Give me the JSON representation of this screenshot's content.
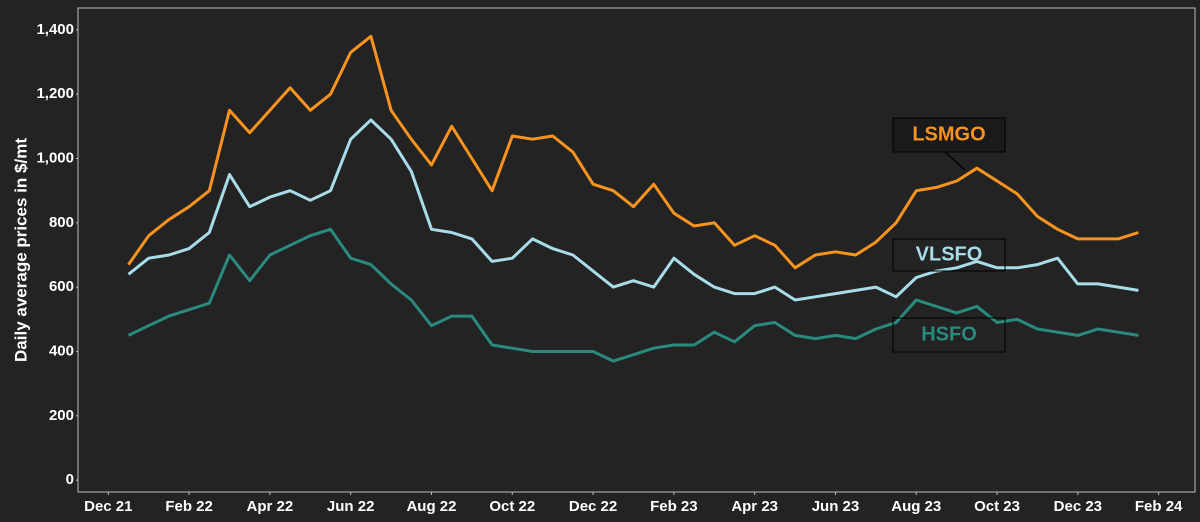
{
  "chart_data": {
    "type": "line",
    "y_label": "Daily average prices in $/mt",
    "x": [
      0.5,
      1,
      1.5,
      2,
      2.5,
      3,
      3.5,
      4,
      4.5,
      5,
      5.5,
      6,
      6.5,
      7,
      7.5,
      8,
      8.5,
      9,
      9.5,
      10,
      10.5,
      11,
      11.5,
      12,
      12.5,
      13,
      13.5,
      14,
      14.5,
      15,
      15.5,
      16,
      16.5,
      17,
      17.5,
      18,
      18.5,
      19,
      19.5,
      20,
      20.5,
      21,
      21.5,
      22,
      22.5,
      23,
      23.5,
      24,
      24.5,
      25,
      25.5
    ],
    "xlim": [
      -0.75,
      26.9
    ],
    "xticks": [
      {
        "value": 0,
        "label": "Dec 21"
      },
      {
        "value": 2,
        "label": "Feb 22"
      },
      {
        "value": 4,
        "label": "Apr 22"
      },
      {
        "value": 6,
        "label": "Jun 22"
      },
      {
        "value": 8,
        "label": "Aug 22"
      },
      {
        "value": 10,
        "label": "Oct 22"
      },
      {
        "value": 12,
        "label": "Dec 22"
      },
      {
        "value": 14,
        "label": "Feb 23"
      },
      {
        "value": 16,
        "label": "Apr 23"
      },
      {
        "value": 18,
        "label": "Jun 23"
      },
      {
        "value": 20,
        "label": "Aug 23"
      },
      {
        "value": 22,
        "label": "Oct 23"
      },
      {
        "value": 24,
        "label": "Dec 23"
      },
      {
        "value": 26,
        "label": "Feb 24"
      }
    ],
    "ylim": [
      -37,
      1468
    ],
    "yticks": [
      0,
      200,
      400,
      600,
      800,
      {
        "value": 1000,
        "label": "1,000"
      },
      {
        "value": 1200,
        "label": "1,200"
      },
      {
        "value": 1400,
        "label": "1,400"
      }
    ],
    "series": [
      {
        "name": "LSMGO",
        "color": "#f7931e",
        "values": [
          670,
          760,
          810,
          850,
          900,
          1150,
          1080,
          1150,
          1220,
          1150,
          1200,
          1330,
          1380,
          1150,
          1060,
          980,
          1100,
          1000,
          900,
          1070,
          1060,
          1070,
          1020,
          920,
          900,
          850,
          920,
          830,
          790,
          800,
          730,
          760,
          730,
          660,
          700,
          710,
          700,
          740,
          800,
          900,
          910,
          930,
          970,
          930,
          890,
          820,
          780,
          750,
          750,
          750,
          770
        ]
      },
      {
        "name": "VLSFO",
        "color": "#a8dce8",
        "values": [
          640,
          690,
          700,
          720,
          770,
          950,
          850,
          880,
          900,
          870,
          900,
          1060,
          1120,
          1060,
          960,
          780,
          770,
          750,
          680,
          690,
          750,
          720,
          700,
          650,
          600,
          620,
          600,
          690,
          640,
          600,
          580,
          580,
          600,
          560,
          570,
          580,
          590,
          600,
          570,
          630,
          650,
          660,
          680,
          660,
          660,
          670,
          690,
          610,
          610,
          600,
          590
        ]
      },
      {
        "name": "HSFO",
        "color": "#2a8a7e",
        "values": [
          450,
          480,
          510,
          530,
          550,
          700,
          620,
          700,
          730,
          760,
          780,
          690,
          670,
          610,
          560,
          480,
          510,
          510,
          420,
          410,
          400,
          400,
          400,
          400,
          370,
          390,
          410,
          420,
          420,
          460,
          430,
          480,
          490,
          450,
          440,
          450,
          440,
          470,
          490,
          560,
          540,
          520,
          540,
          490,
          500,
          470,
          460,
          450,
          470,
          460,
          450
        ]
      }
    ]
  }
}
